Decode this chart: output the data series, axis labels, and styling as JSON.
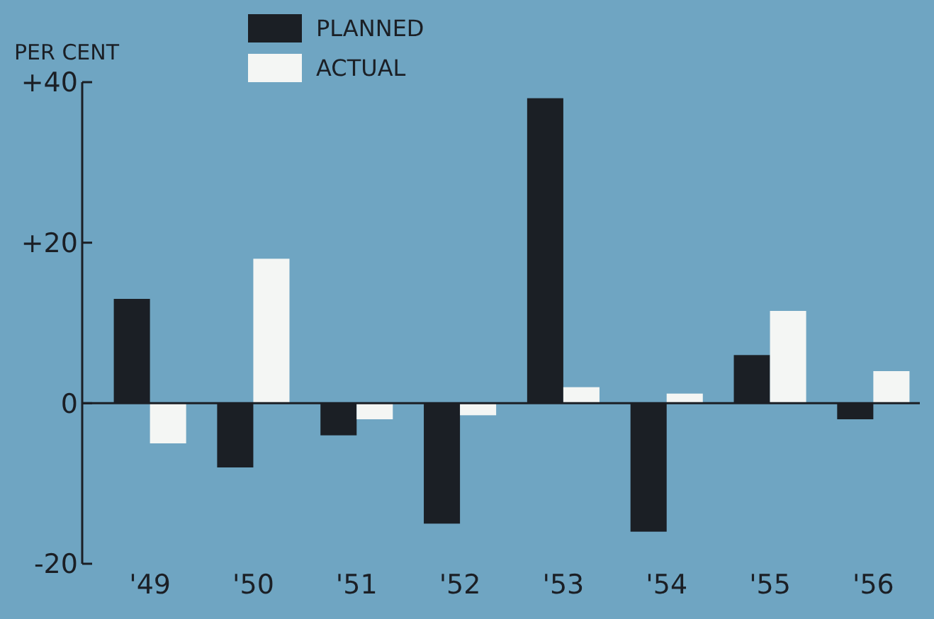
{
  "chart_data": {
    "type": "bar",
    "ylabel": "PER CENT",
    "categories": [
      "'49",
      "'50",
      "'51",
      "'52",
      "'53",
      "'54",
      "'55",
      "'56"
    ],
    "series": [
      {
        "name": "PLANNED",
        "color": "#1b1f25",
        "values": [
          13,
          -8,
          -4,
          -15,
          38,
          -16,
          6,
          -2
        ]
      },
      {
        "name": "ACTUAL",
        "color": "#f4f6f4",
        "values": [
          -5,
          18,
          -2,
          -1.5,
          2,
          1.2,
          11.5,
          4
        ]
      }
    ],
    "ylim": [
      -20,
      40
    ],
    "yticks": [
      {
        "value": -20,
        "label": "-20"
      },
      0,
      {
        "value": 20,
        "label": "+20"
      },
      {
        "value": 40,
        "label": "+40"
      }
    ],
    "ref_lines": [
      {
        "axis": "y",
        "value": 0
      }
    ],
    "legend": "top",
    "grid": false
  }
}
